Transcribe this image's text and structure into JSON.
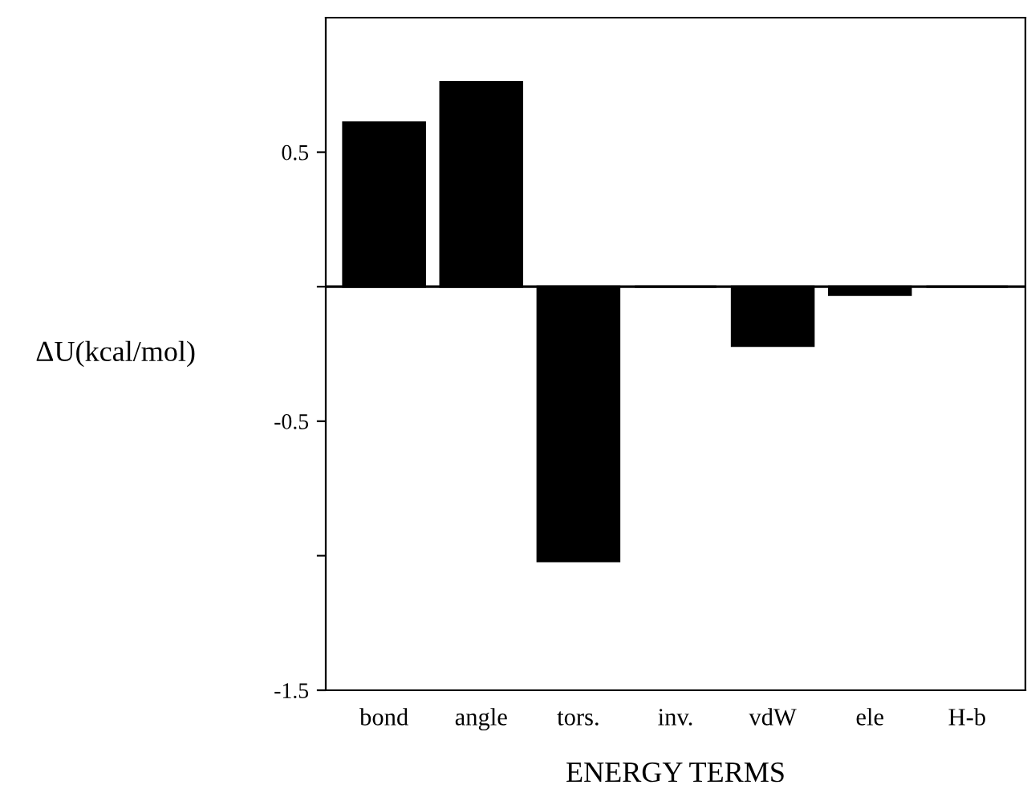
{
  "chart_data": {
    "type": "bar",
    "xlabel": "ENERGY TERMS",
    "ylabel": "ΔU(kcal/mol)",
    "categories": [
      "bond",
      "angle",
      "tors.",
      "inv.",
      "vdW",
      "ele",
      "H-b"
    ],
    "values": [
      0.61,
      0.76,
      -1.02,
      0,
      -0.22,
      -0.03,
      0
    ],
    "color": "#000000",
    "ylim": [
      -1.5,
      1.0
    ],
    "yticks": [
      {
        "value": -1.5,
        "label": "-1.5"
      },
      {
        "value": -1,
        "label": null
      },
      {
        "value": -0.5,
        "label": "-0.5"
      },
      {
        "value": 0,
        "label": null
      },
      0.5
    ],
    "ref_lines": [
      {
        "axis": "y",
        "value": 0,
        "color": "#000000"
      }
    ],
    "grid": false,
    "legend": false
  }
}
